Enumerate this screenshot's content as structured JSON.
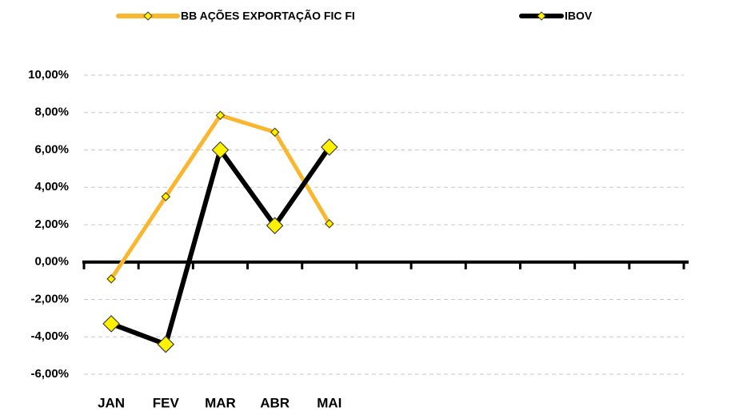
{
  "chart_data": {
    "type": "line",
    "categories": [
      "JAN",
      "FEV",
      "MAR",
      "ABR",
      "MAI",
      null,
      null,
      null,
      null,
      null,
      null
    ],
    "series": [
      {
        "name": "BB AÇÕES EXPORTAÇÃO FIC FI",
        "color": "#FBB62F",
        "marker_color": "#FFF200",
        "values": [
          -0.9,
          3.5,
          7.85,
          6.95,
          2.05,
          null,
          null,
          null,
          null,
          null,
          null
        ]
      },
      {
        "name": "IBOV",
        "color": "#000000",
        "marker_color": "#FFF200",
        "values": [
          -3.3,
          -4.4,
          6.0,
          1.95,
          6.15,
          null,
          null,
          null,
          null,
          null,
          null
        ]
      }
    ],
    "ylim": [
      -6,
      10
    ],
    "yticks": [
      {
        "value": -6,
        "label": "-6,00%"
      },
      {
        "value": -4,
        "label": "-4,00%"
      },
      {
        "value": -2,
        "label": "-2,00%"
      },
      {
        "value": 0,
        "label": "0,00%"
      },
      {
        "value": 2,
        "label": "2,00%"
      },
      {
        "value": 4,
        "label": "4,00%"
      },
      {
        "value": 6,
        "label": "6,00%"
      },
      {
        "value": 8,
        "label": "8,00%"
      },
      {
        "value": 10,
        "label": "10,00%"
      }
    ],
    "grid": true,
    "legend": "top"
  }
}
